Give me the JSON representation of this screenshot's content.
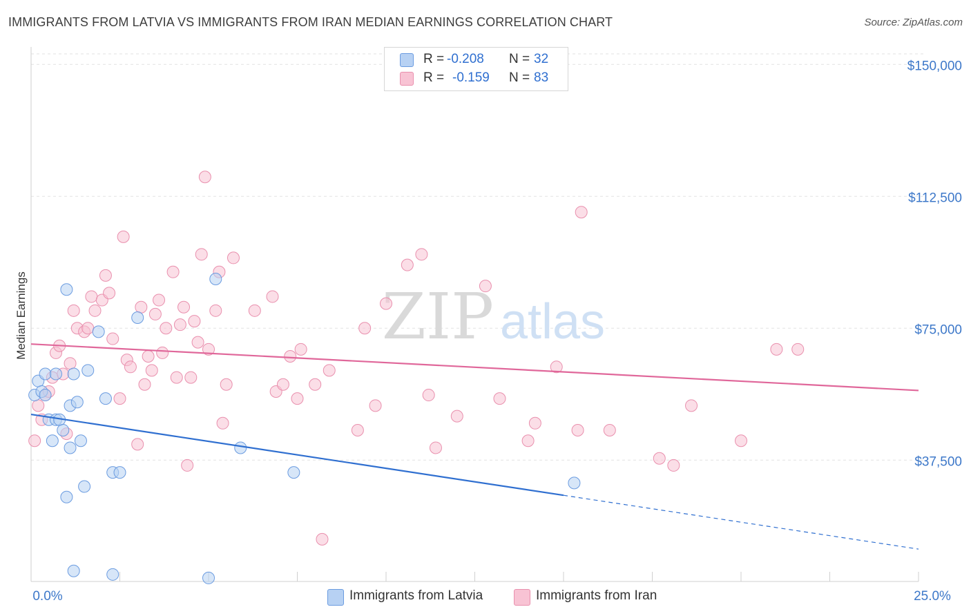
{
  "title": "IMMIGRANTS FROM LATVIA VS IMMIGRANTS FROM IRAN MEDIAN EARNINGS CORRELATION CHART",
  "source": "Source: ZipAtlas.com",
  "watermark": {
    "zip": "ZIP",
    "atlas": "atlas"
  },
  "colors": {
    "latvia_fill": "#b7d1f3",
    "latvia_stroke": "#6a9be0",
    "latvia_line": "#2f6fd0",
    "iran_fill": "#f8c3d4",
    "iran_stroke": "#e98fad",
    "iran_line": "#e0679a",
    "axis_label": "#3d78c9",
    "grid": "#e2e2e2"
  },
  "legend": {
    "latvia": {
      "r_label": "R =",
      "r_value": "-0.208",
      "n_label": "N =",
      "n_value": "32"
    },
    "iran": {
      "r_label": "R =",
      "r_value": "-0.159",
      "n_label": "N =",
      "n_value": "83"
    }
  },
  "bottom_legend": {
    "latvia": "Immigrants from Latvia",
    "iran": "Immigrants from Iran"
  },
  "chart_data": {
    "type": "scatter",
    "xlabel": "",
    "ylabel": "Median Earnings",
    "xlim": [
      0,
      25
    ],
    "ylim": [
      3000,
      153000
    ],
    "x_tick_labels": [
      "0.0%",
      "25.0%"
    ],
    "y_ticks": [
      37500,
      75000,
      112500,
      150000
    ],
    "y_tick_labels": [
      "$37,500",
      "$75,000",
      "$112,500",
      "$150,000"
    ],
    "grid": true,
    "legend_position": "top-center",
    "series": [
      {
        "name": "Immigrants from Latvia",
        "color": "#6a9be0",
        "points": [
          [
            0.1,
            56000
          ],
          [
            0.2,
            60000
          ],
          [
            0.3,
            57000
          ],
          [
            0.4,
            62000
          ],
          [
            0.4,
            56000
          ],
          [
            0.5,
            49000
          ],
          [
            0.6,
            43000
          ],
          [
            0.7,
            49000
          ],
          [
            0.7,
            62000
          ],
          [
            0.8,
            49000
          ],
          [
            0.9,
            46000
          ],
          [
            1.0,
            27000
          ],
          [
            1.0,
            86000
          ],
          [
            1.1,
            41000
          ],
          [
            1.1,
            53000
          ],
          [
            1.2,
            62000
          ],
          [
            1.3,
            54000
          ],
          [
            1.4,
            43000
          ],
          [
            1.5,
            30000
          ],
          [
            1.6,
            63000
          ],
          [
            1.9,
            74000
          ],
          [
            2.1,
            55000
          ],
          [
            2.3,
            34000
          ],
          [
            2.5,
            34000
          ],
          [
            3.0,
            78000
          ],
          [
            5.2,
            89000
          ],
          [
            5.9,
            41000
          ],
          [
            7.4,
            34000
          ],
          [
            15.3,
            31000
          ],
          [
            1.2,
            6000
          ],
          [
            2.3,
            5000
          ],
          [
            5.0,
            4000
          ]
        ]
      },
      {
        "name": "Immigrants from Iran",
        "color": "#e98fad",
        "points": [
          [
            0.1,
            43000
          ],
          [
            0.2,
            53000
          ],
          [
            0.3,
            49000
          ],
          [
            0.4,
            56000
          ],
          [
            0.5,
            57000
          ],
          [
            0.6,
            61000
          ],
          [
            0.7,
            68000
          ],
          [
            0.8,
            70000
          ],
          [
            0.9,
            62000
          ],
          [
            1.0,
            45000
          ],
          [
            1.1,
            65000
          ],
          [
            1.2,
            80000
          ],
          [
            1.3,
            75000
          ],
          [
            1.5,
            74000
          ],
          [
            1.6,
            75000
          ],
          [
            1.7,
            84000
          ],
          [
            1.8,
            80000
          ],
          [
            2.0,
            83000
          ],
          [
            2.1,
            90000
          ],
          [
            2.2,
            85000
          ],
          [
            2.3,
            72000
          ],
          [
            2.5,
            55000
          ],
          [
            2.6,
            101000
          ],
          [
            2.7,
            66000
          ],
          [
            2.8,
            64000
          ],
          [
            3.0,
            42000
          ],
          [
            3.1,
            81000
          ],
          [
            3.2,
            59000
          ],
          [
            3.3,
            67000
          ],
          [
            3.4,
            63000
          ],
          [
            3.5,
            79000
          ],
          [
            3.6,
            83000
          ],
          [
            3.7,
            68000
          ],
          [
            3.8,
            75000
          ],
          [
            4.0,
            91000
          ],
          [
            4.1,
            61000
          ],
          [
            4.2,
            76000
          ],
          [
            4.3,
            81000
          ],
          [
            4.4,
            36000
          ],
          [
            4.5,
            61000
          ],
          [
            4.6,
            77000
          ],
          [
            4.7,
            71000
          ],
          [
            4.8,
            96000
          ],
          [
            4.9,
            118000
          ],
          [
            5.0,
            69000
          ],
          [
            5.2,
            80000
          ],
          [
            5.3,
            91000
          ],
          [
            5.4,
            48000
          ],
          [
            5.5,
            59000
          ],
          [
            5.7,
            95000
          ],
          [
            6.3,
            80000
          ],
          [
            6.8,
            84000
          ],
          [
            6.9,
            57000
          ],
          [
            7.1,
            59000
          ],
          [
            7.3,
            67000
          ],
          [
            7.5,
            55000
          ],
          [
            7.6,
            69000
          ],
          [
            8.0,
            59000
          ],
          [
            8.4,
            63000
          ],
          [
            9.2,
            46000
          ],
          [
            9.4,
            75000
          ],
          [
            9.7,
            53000
          ],
          [
            10.0,
            82000
          ],
          [
            10.6,
            93000
          ],
          [
            11.0,
            96000
          ],
          [
            11.2,
            56000
          ],
          [
            11.4,
            41000
          ],
          [
            12.0,
            50000
          ],
          [
            12.8,
            87000
          ],
          [
            13.2,
            55000
          ],
          [
            14.0,
            43000
          ],
          [
            14.2,
            48000
          ],
          [
            14.8,
            64000
          ],
          [
            15.4,
            46000
          ],
          [
            15.5,
            108000
          ],
          [
            16.3,
            46000
          ],
          [
            8.2,
            15000
          ],
          [
            17.7,
            38000
          ],
          [
            18.1,
            36000
          ],
          [
            18.6,
            53000
          ],
          [
            20.0,
            43000
          ],
          [
            21.0,
            69000
          ],
          [
            21.6,
            69000
          ]
        ]
      }
    ],
    "trend_lines": [
      {
        "series": "Immigrants from Latvia",
        "x": [
          0,
          15
        ],
        "y": [
          50500,
          27500
        ],
        "dashed_to": [
          25,
          12200
        ]
      },
      {
        "series": "Immigrants from Iran",
        "x": [
          0,
          25
        ],
        "y": [
          70500,
          57300
        ]
      }
    ]
  }
}
